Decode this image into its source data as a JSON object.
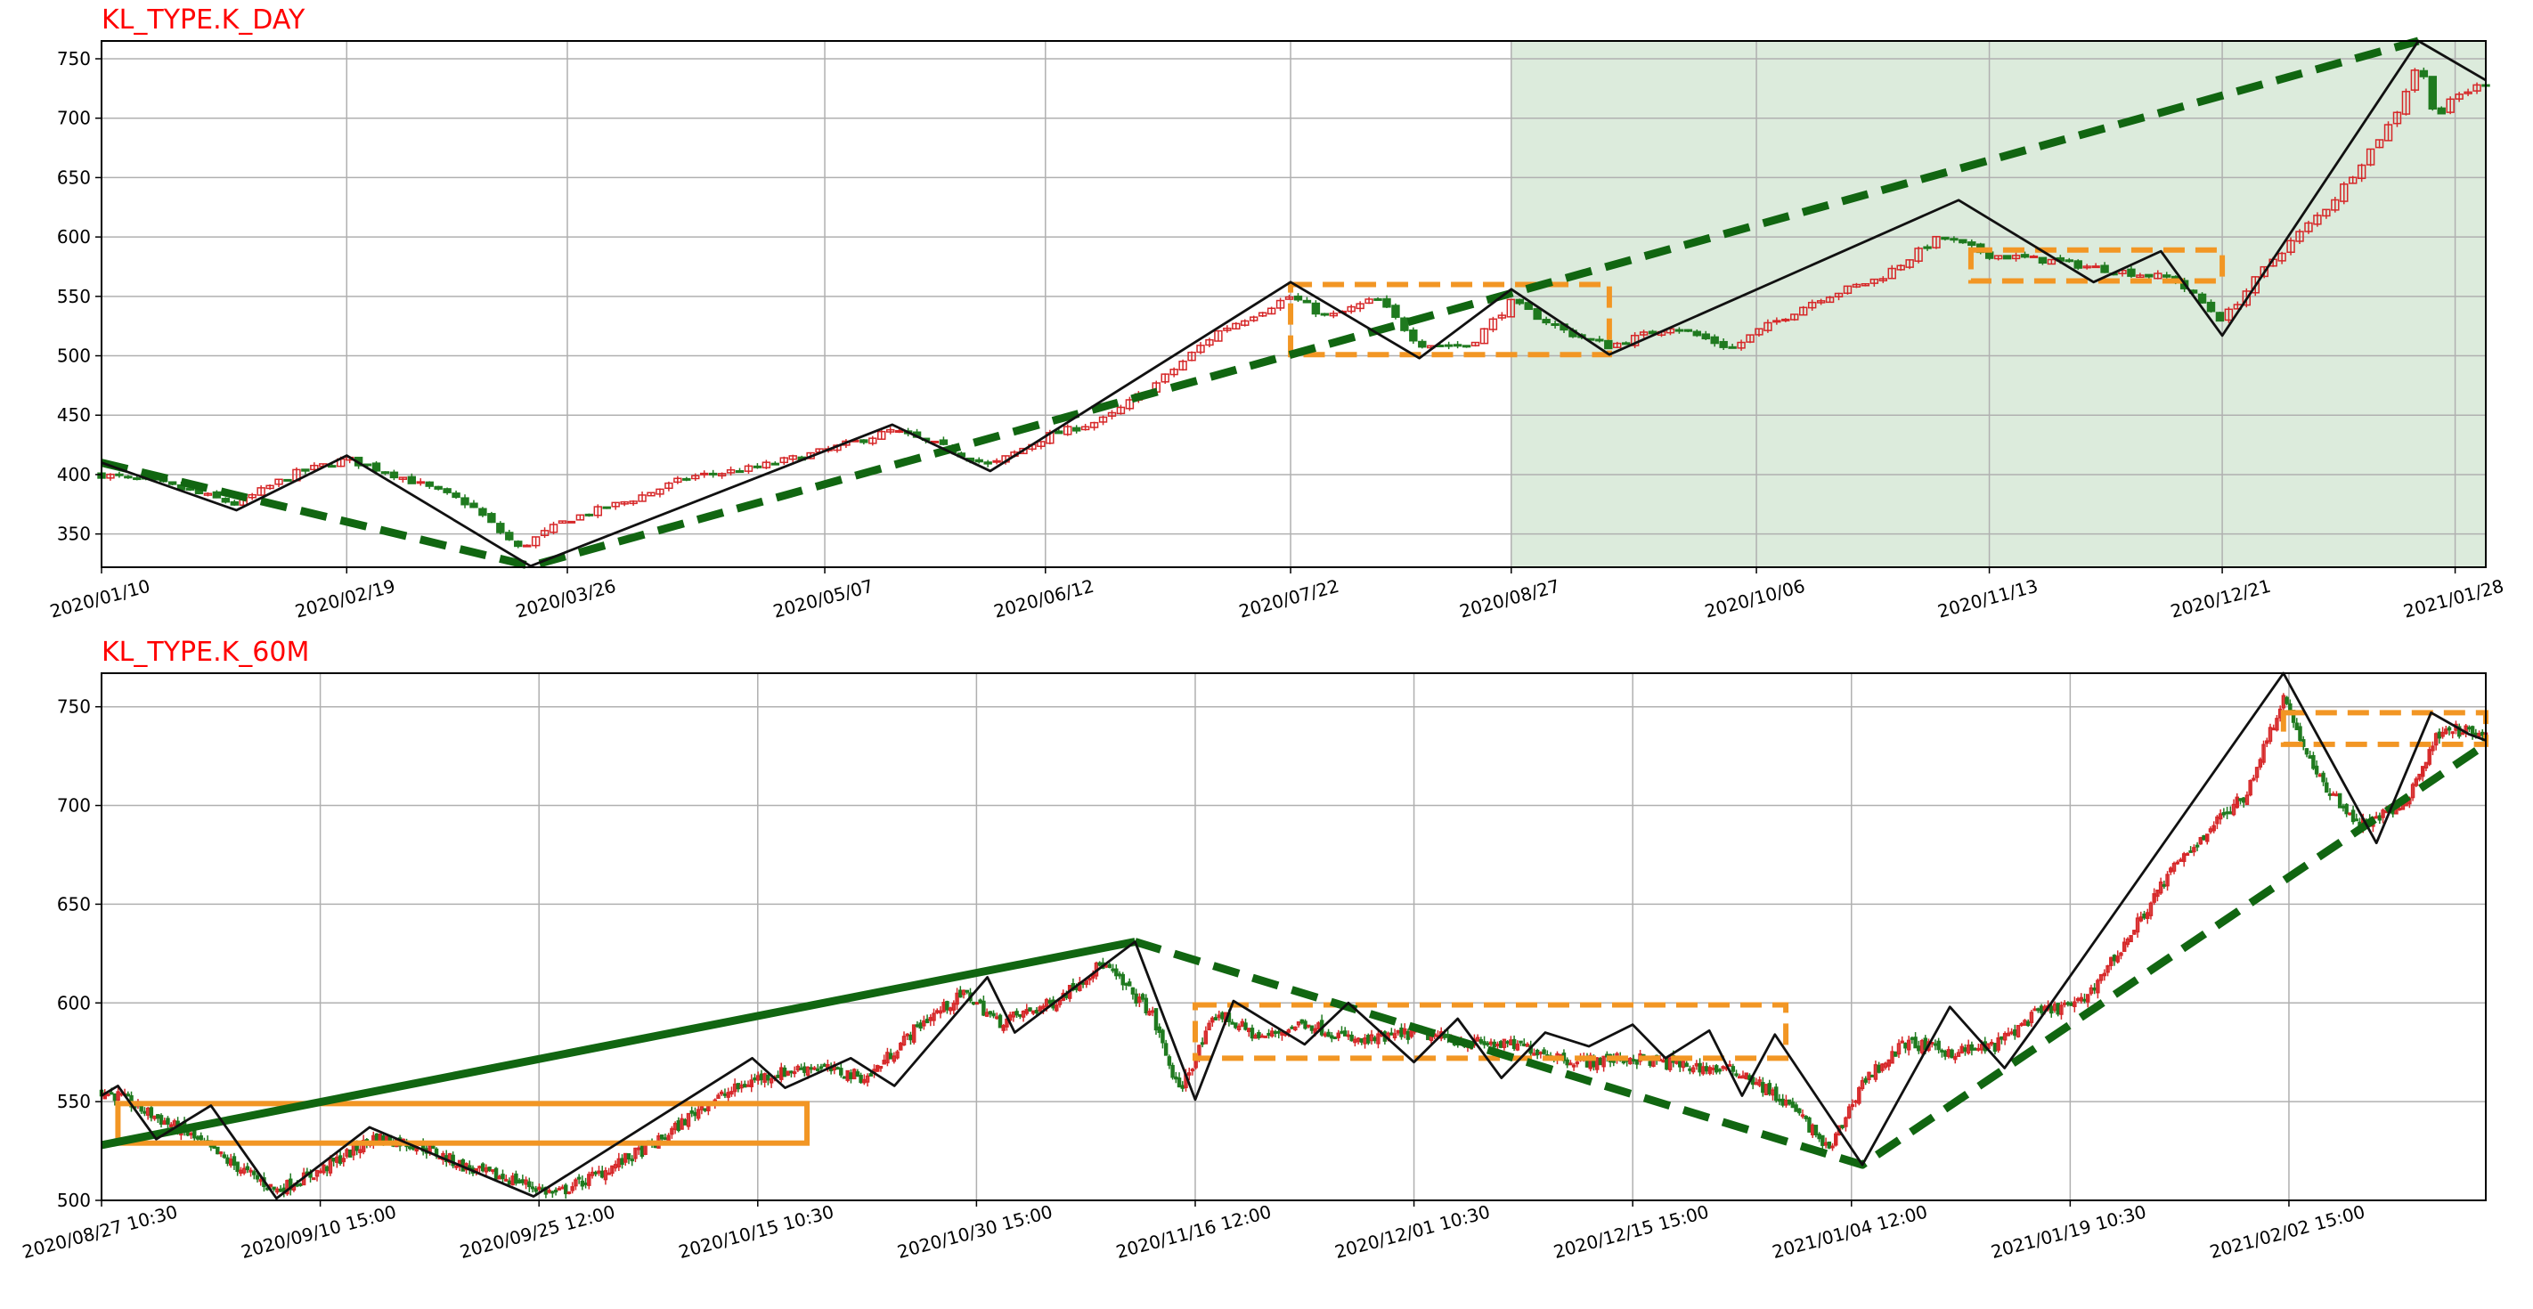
{
  "chart_data": [
    {
      "type": "candlestick",
      "title": "KL_TYPE.K_DAY",
      "xlabel": "",
      "ylabel": "",
      "ylim": [
        322,
        765
      ],
      "grid": true,
      "y_ticks": [
        350,
        400,
        450,
        500,
        550,
        600,
        650,
        700,
        750
      ],
      "x_range": [
        "2020/01/10",
        "2021/02/02"
      ],
      "x_ticks": [
        "2020/01/10",
        "2020/02/19",
        "2020/03/26",
        "2020/05/07",
        "2020/06/12",
        "2020/07/22",
        "2020/08/27",
        "2020/10/06",
        "2020/11/13",
        "2020/12/21",
        "2021/01/28"
      ],
      "highlight_region": {
        "from": "2020/08/27",
        "to": "2021/02/02",
        "color": "#dcebdc"
      },
      "price_path": [
        [
          "2020/01/10",
          400
        ],
        [
          "2020/01/20",
          392
        ],
        [
          "2020/02/01",
          375
        ],
        [
          "2020/02/10",
          400
        ],
        [
          "2020/02/19",
          413
        ],
        [
          "2020/02/28",
          398
        ],
        [
          "2020/03/10",
          375
        ],
        [
          "2020/03/18",
          338
        ],
        [
          "2020/03/26",
          362
        ],
        [
          "2020/04/05",
          378
        ],
        [
          "2020/04/15",
          398
        ],
        [
          "2020/04/25",
          405
        ],
        [
          "2020/05/07",
          420
        ],
        [
          "2020/05/18",
          437
        ],
        [
          "2020/05/28",
          420
        ],
        [
          "2020/06/03",
          407
        ],
        [
          "2020/06/12",
          432
        ],
        [
          "2020/06/22",
          447
        ],
        [
          "2020/07/01",
          480
        ],
        [
          "2020/07/10",
          520
        ],
        [
          "2020/07/22",
          550
        ],
        [
          "2020/07/28",
          532
        ],
        [
          "2020/08/05",
          548
        ],
        [
          "2020/08/12",
          510
        ],
        [
          "2020/08/20",
          508
        ],
        [
          "2020/08/27",
          545
        ],
        [
          "2020/09/05",
          520
        ],
        [
          "2020/09/12",
          508
        ],
        [
          "2020/09/22",
          525
        ],
        [
          "2020/10/02",
          506
        ],
        [
          "2020/10/06",
          520
        ],
        [
          "2020/10/16",
          548
        ],
        [
          "2020/10/26",
          565
        ],
        [
          "2020/11/05",
          600
        ],
        [
          "2020/11/13",
          585
        ],
        [
          "2020/11/23",
          580
        ],
        [
          "2020/12/03",
          572
        ],
        [
          "2020/12/13",
          565
        ],
        [
          "2020/12/21",
          530
        ],
        [
          "2020/12/29",
          580
        ],
        [
          "2021/01/08",
          630
        ],
        [
          "2021/01/18",
          700
        ],
        [
          "2021/01/22",
          748
        ],
        [
          "2021/01/25",
          700
        ],
        [
          "2021/01/28",
          718
        ],
        [
          "2021/02/02",
          730
        ]
      ],
      "bi_zigzag": [
        [
          "2020/01/10",
          410
        ],
        [
          "2020/02/01",
          370
        ],
        [
          "2020/02/19",
          416
        ],
        [
          "2020/03/20",
          323
        ],
        [
          "2020/05/18",
          442
        ],
        [
          "2020/06/03",
          403
        ],
        [
          "2020/07/22",
          562
        ],
        [
          "2020/08/12",
          498
        ],
        [
          "2020/08/27",
          556
        ],
        [
          "2020/09/12",
          501
        ],
        [
          "2020/11/08",
          631
        ],
        [
          "2020/11/30",
          562
        ],
        [
          "2020/12/11",
          588
        ],
        [
          "2020/12/21",
          517
        ],
        [
          "2021/01/22",
          765
        ],
        [
          "2021/02/02",
          732
        ]
      ],
      "seg_lines": [
        [
          [
            "2020/01/10",
            410
          ],
          [
            "2020/03/20",
            323
          ],
          [
            "2021/01/22",
            765
          ]
        ]
      ],
      "zs_boxes": [
        {
          "from": "2020/07/22",
          "to": "2020/09/12",
          "low": 501,
          "high": 560
        },
        {
          "from": "2020/11/10",
          "to": "2020/12/21",
          "low": 563,
          "high": 589
        }
      ]
    },
    {
      "type": "candlestick",
      "title": "KL_TYPE.K_60M",
      "xlabel": "",
      "ylabel": "",
      "ylim": [
        500,
        767
      ],
      "grid": true,
      "y_ticks": [
        500,
        550,
        600,
        650,
        700,
        750
      ],
      "x_range": [
        "2020/08/27 10:30",
        "2021/02/02 15:00"
      ],
      "x_ticks": [
        "2020/08/27 10:30",
        "2020/09/10 15:00",
        "2020/09/25 12:00",
        "2020/10/15 10:30",
        "2020/10/30 15:00",
        "2020/11/16 12:00",
        "2020/12/01 10:30",
        "2020/12/15 15:00",
        "2021/01/04 12:00",
        "2021/01/19 10:30",
        "2021/02/02 15:00"
      ],
      "price_path": [
        [
          0,
          555
        ],
        [
          0.3,
          553
        ],
        [
          0.8,
          545
        ],
        [
          1.5,
          535
        ],
        [
          2.3,
          520
        ],
        [
          3.2,
          505
        ],
        [
          4.0,
          515
        ],
        [
          5.0,
          532
        ],
        [
          5.8,
          528
        ],
        [
          6.8,
          515
        ],
        [
          7.6,
          510
        ],
        [
          8.3,
          503
        ],
        [
          9.2,
          515
        ],
        [
          10.2,
          530
        ],
        [
          11.0,
          548
        ],
        [
          12.0,
          562
        ],
        [
          13.0,
          568
        ],
        [
          14.0,
          562
        ],
        [
          15.0,
          590
        ],
        [
          15.8,
          605
        ],
        [
          16.4,
          590
        ],
        [
          17.4,
          600
        ],
        [
          18.3,
          620
        ],
        [
          19.2,
          595
        ],
        [
          19.7,
          555
        ],
        [
          20.4,
          595
        ],
        [
          21.2,
          582
        ],
        [
          22.0,
          590
        ],
        [
          23.0,
          580
        ],
        [
          24.0,
          585
        ],
        [
          25.0,
          580
        ],
        [
          26.0,
          578
        ],
        [
          27.0,
          570
        ],
        [
          28.0,
          572
        ],
        [
          29.0,
          568
        ],
        [
          30.0,
          565
        ],
        [
          31.0,
          545
        ],
        [
          31.6,
          525
        ],
        [
          32.2,
          560
        ],
        [
          33.0,
          580
        ],
        [
          33.8,
          575
        ],
        [
          34.6,
          578
        ],
        [
          35.4,
          595
        ],
        [
          36.2,
          600
        ],
        [
          37.0,
          630
        ],
        [
          37.8,
          665
        ],
        [
          38.6,
          690
        ],
        [
          39.2,
          705
        ],
        [
          39.9,
          755
        ],
        [
          40.5,
          715
        ],
        [
          41.3,
          690
        ],
        [
          42.1,
          700
        ],
        [
          42.8,
          740
        ],
        [
          43.6,
          735
        ]
      ],
      "bi_zigzag": [
        [
          0,
          553
        ],
        [
          0.3,
          558
        ],
        [
          1.0,
          531
        ],
        [
          2.0,
          548
        ],
        [
          3.2,
          501
        ],
        [
          4.9,
          537
        ],
        [
          7.9,
          502
        ],
        [
          11.9,
          572
        ],
        [
          12.5,
          557
        ],
        [
          13.7,
          572
        ],
        [
          14.5,
          558
        ],
        [
          16.2,
          613
        ],
        [
          16.7,
          585
        ],
        [
          18.9,
          631
        ],
        [
          20.0,
          551
        ],
        [
          20.7,
          601
        ],
        [
          22.0,
          579
        ],
        [
          22.8,
          600
        ],
        [
          24.0,
          570
        ],
        [
          24.8,
          592
        ],
        [
          25.6,
          562
        ],
        [
          26.4,
          585
        ],
        [
          27.2,
          578
        ],
        [
          28.0,
          589
        ],
        [
          28.6,
          572
        ],
        [
          29.4,
          586
        ],
        [
          30.0,
          553
        ],
        [
          30.6,
          584
        ],
        [
          32.2,
          518
        ],
        [
          33.8,
          598
        ],
        [
          34.8,
          567
        ],
        [
          35.4,
          590
        ],
        [
          39.9,
          767
        ],
        [
          41.6,
          681
        ],
        [
          42.6,
          747
        ],
        [
          43.3,
          736
        ],
        [
          43.6,
          733
        ]
      ],
      "seg_lines": [
        [
          [
            0,
            528
          ],
          [
            18.9,
            631
          ]
        ],
        [
          [
            18.9,
            631
          ],
          [
            32.2,
            518
          ],
          [
            43.6,
            731
          ]
        ]
      ],
      "zs_boxes": [
        {
          "from": 0.3,
          "to": 12.9,
          "low": 529,
          "high": 549,
          "style": "solid"
        },
        {
          "from": 20.0,
          "to": 30.8,
          "low": 572,
          "high": 599,
          "style": "dashed"
        },
        {
          "from": 39.9,
          "to": 43.6,
          "low": 731,
          "high": 747,
          "style": "dashed"
        }
      ]
    }
  ]
}
